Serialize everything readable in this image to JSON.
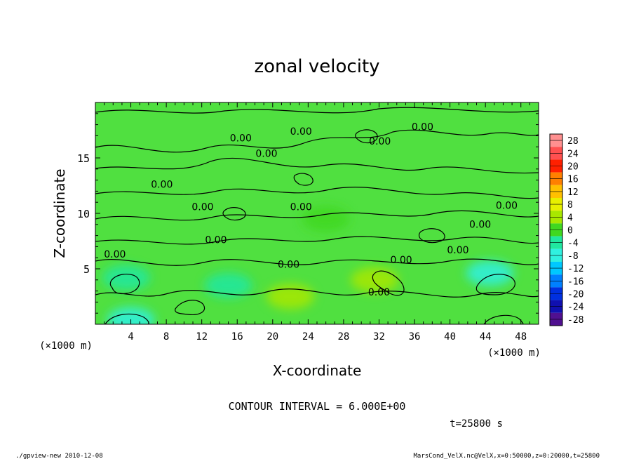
{
  "chart_data": {
    "type": "heatmap",
    "title": "zonal velocity",
    "xlabel": "X-coordinate",
    "ylabel": "Z-coordinate",
    "x_unit": "(×1000 m)",
    "y_unit": "(×1000 m)",
    "xlim": [
      0,
      50
    ],
    "ylim": [
      0,
      20
    ],
    "x_ticks": [
      4,
      8,
      12,
      16,
      20,
      24,
      28,
      32,
      36,
      40,
      44,
      48
    ],
    "y_ticks": [
      5,
      10,
      15
    ],
    "colorbar": {
      "levels": [
        28,
        24,
        20,
        16,
        12,
        8,
        4,
        0,
        -4,
        -8,
        -12,
        -16,
        -20,
        -24,
        -28
      ],
      "colors": [
        "#ff9090",
        "#ff5050",
        "#ff2000",
        "#ff8000",
        "#ffc000",
        "#e8f000",
        "#a8e800",
        "#40d820",
        "#20e8a0",
        "#30f0e0",
        "#00c8ff",
        "#0080ff",
        "#0030e0",
        "#1010b0",
        "#501090"
      ]
    },
    "contour_label_text": "0.00",
    "contour_interval": "CONTOUR INTERVAL = 6.000E+00",
    "time_label": "t=25800 s",
    "footer_left": "./gpview-new  2010-12-08",
    "footer_right": "MarsCond_VelX.nc@VelX,x=0:50000,z=0:20000,t=25800",
    "field_features": [
      {
        "x": 3.5,
        "z": 4.2,
        "value": -6
      },
      {
        "x": 44.5,
        "z": 4.6,
        "value": -7
      },
      {
        "x": 31.5,
        "z": 4.0,
        "value": 4
      },
      {
        "x": 22.0,
        "z": 2.5,
        "value": 4
      },
      {
        "x": 15.0,
        "z": 3.5,
        "value": -3
      },
      {
        "x": 26.0,
        "z": 9.5,
        "value": 1
      },
      {
        "x": 4.0,
        "z": 0.4,
        "value": -8
      }
    ],
    "contour_labels": [
      {
        "x": 16.4,
        "z": 16.5
      },
      {
        "x": 23.2,
        "z": 17.1
      },
      {
        "x": 19.3,
        "z": 15.1
      },
      {
        "x": 32.1,
        "z": 16.2
      },
      {
        "x": 36.9,
        "z": 17.5
      },
      {
        "x": 7.5,
        "z": 12.3
      },
      {
        "x": 12.1,
        "z": 10.3
      },
      {
        "x": 23.2,
        "z": 10.3
      },
      {
        "x": 46.4,
        "z": 10.4
      },
      {
        "x": 43.4,
        "z": 8.7
      },
      {
        "x": 13.6,
        "z": 7.3
      },
      {
        "x": 2.2,
        "z": 6.0
      },
      {
        "x": 21.8,
        "z": 5.1
      },
      {
        "x": 34.5,
        "z": 5.5
      },
      {
        "x": 40.9,
        "z": 6.4
      },
      {
        "x": 32.0,
        "z": 2.6
      }
    ]
  }
}
